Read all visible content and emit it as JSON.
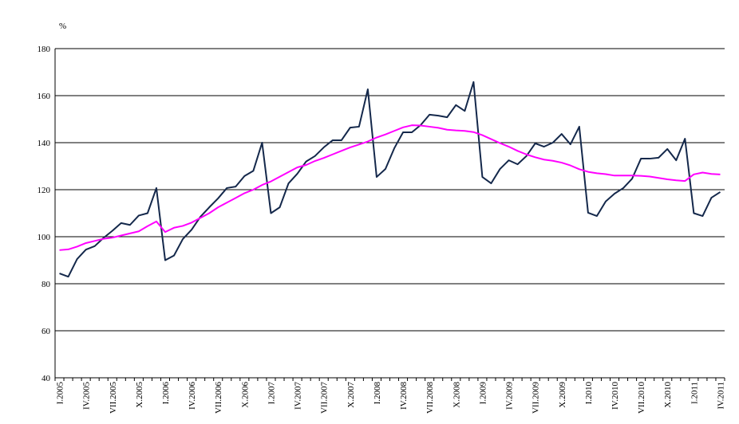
{
  "chart_data": {
    "type": "line",
    "y_label": "%",
    "categories": [
      "I.2005",
      null,
      null,
      "IV.2005",
      null,
      null,
      "VII.2005",
      null,
      null,
      "X.2005",
      null,
      null,
      "I.2006",
      null,
      null,
      "IV.2006",
      null,
      null,
      "VII.2006",
      null,
      null,
      "X.2006",
      null,
      null,
      "I.2007",
      null,
      null,
      "IV.2007",
      null,
      null,
      "VII.2007",
      null,
      null,
      "X.2007",
      null,
      null,
      "I.2008",
      null,
      null,
      "IV.2008",
      null,
      null,
      "VII.2008",
      null,
      null,
      "X.2008",
      null,
      null,
      "I.2009",
      null,
      null,
      "IV.2009",
      null,
      null,
      "VII.2009",
      null,
      null,
      "X.2009",
      null,
      null,
      "I.2010",
      null,
      null,
      "IV.2010",
      null,
      null,
      "VII.2010",
      null,
      null,
      "X.2010",
      null,
      null,
      "I.2011",
      null,
      null,
      "IV.2011"
    ],
    "series": [
      {
        "color": "#14284b",
        "values": [
          84.4,
          83,
          90.5,
          94.5,
          96,
          99.5,
          102.5,
          105.8,
          105,
          109,
          110,
          120.7,
          90,
          92,
          99,
          103,
          108.5,
          112.5,
          116.3,
          120.7,
          121.3,
          125.8,
          128,
          140,
          110,
          112.5,
          122.7,
          126.8,
          132,
          134.3,
          138,
          141,
          141,
          146.4,
          146.8,
          162.7,
          125.4,
          128.8,
          137.6,
          144.4,
          144.4,
          147.5,
          151.9,
          151.5,
          150.8,
          156,
          153.5,
          165.8,
          125.4,
          122.7,
          128.8,
          132.5,
          130.8,
          134.3,
          139.7,
          138.3,
          140,
          143.7,
          139.3,
          146.8,
          110.2,
          108.8,
          115,
          118.3,
          120.7,
          124.7,
          133.2,
          133.2,
          133.6,
          137.3,
          132.5,
          141.7,
          110,
          108.8,
          116.6,
          119
        ]
      },
      {
        "color": "#ff00ff",
        "values": [
          94.3,
          94.6,
          95.8,
          97.3,
          98.2,
          99.1,
          99.6,
          100.5,
          101.4,
          102.3,
          104.5,
          106.5,
          102,
          103.8,
          104.6,
          106,
          108,
          110,
          112.5,
          114.5,
          116.5,
          118.5,
          120,
          122,
          123.5,
          125.5,
          127.5,
          129.5,
          130.5,
          132.2,
          133.5,
          135,
          136.5,
          138,
          139.2,
          140.5,
          142.2,
          143.5,
          145,
          146.5,
          147.4,
          147.3,
          146.8,
          146.3,
          145.5,
          145.2,
          145,
          144.5,
          143.2,
          141.5,
          139.8,
          138.3,
          136.5,
          135,
          133.8,
          132.8,
          132.3,
          131.5,
          130.3,
          128.7,
          127.6,
          127,
          126.6,
          126,
          126,
          126,
          125.9,
          125.6,
          125,
          124.4,
          124,
          123.7,
          126.5,
          127.3,
          126.7,
          126.5
        ]
      }
    ],
    "ylim": [
      40,
      180
    ],
    "yticks": [
      40,
      60,
      80,
      100,
      120,
      140,
      160,
      180
    ],
    "grid": true
  }
}
